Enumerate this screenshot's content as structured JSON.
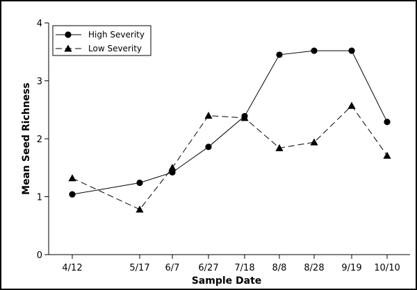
{
  "chart_data": {
    "type": "line",
    "title": "",
    "xlabel": "Sample Date",
    "ylabel": "Mean Seed Richness",
    "categories": [
      "4/12",
      "5/17",
      "6/7",
      "6/27",
      "7/18",
      "8/8",
      "8/28",
      "9/19",
      "10/10"
    ],
    "ylim": [
      0,
      4
    ],
    "yticks": [
      "0",
      "1",
      "2",
      "3",
      "4"
    ],
    "grid": false,
    "legend_position": "top-left",
    "series": [
      {
        "name": "High Severity",
        "marker": "circle",
        "line_style": "solid",
        "color": "#000000",
        "values": [
          1.04,
          1.24,
          1.42,
          1.86,
          2.39,
          3.45,
          3.52,
          3.52,
          2.29
        ]
      },
      {
        "name": "Low Severity",
        "marker": "triangle",
        "line_style": "dashed",
        "color": "#000000",
        "values": [
          1.32,
          0.78,
          1.5,
          2.4,
          2.36,
          1.84,
          1.94,
          2.57,
          1.71
        ]
      }
    ]
  }
}
